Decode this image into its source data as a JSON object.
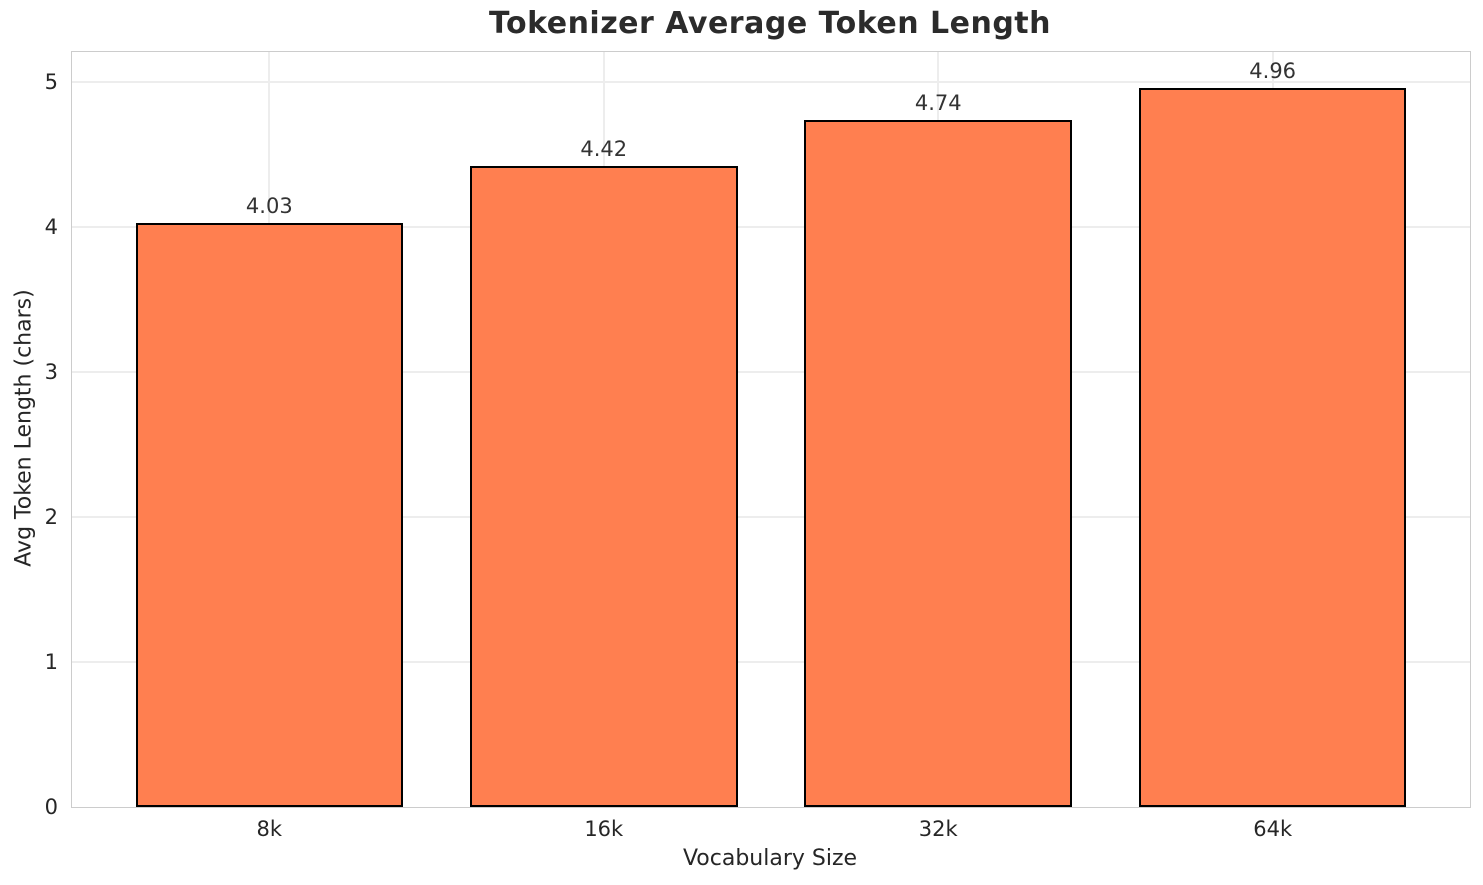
{
  "chart_data": {
    "type": "bar",
    "title": "Tokenizer Average Token Length",
    "xlabel": "Vocabulary Size",
    "ylabel": "Avg Token Length (chars)",
    "categories": [
      "8k",
      "16k",
      "32k",
      "64k"
    ],
    "values": [
      4.03,
      4.42,
      4.74,
      4.96
    ],
    "value_labels": [
      "4.03",
      "4.42",
      "4.74",
      "4.96"
    ],
    "yticks": [
      0,
      1,
      2,
      3,
      4,
      5
    ],
    "ylim": [
      0,
      5.21
    ],
    "grid": true,
    "legend": "none",
    "bar_color": "#FF7F50",
    "bar_edge_color": "#000000",
    "grid_color": "#ededed",
    "spine_color": "#cccccc",
    "text_color": "#262626",
    "title_color": "#2b2b2b",
    "background_color": "#ffffff"
  }
}
